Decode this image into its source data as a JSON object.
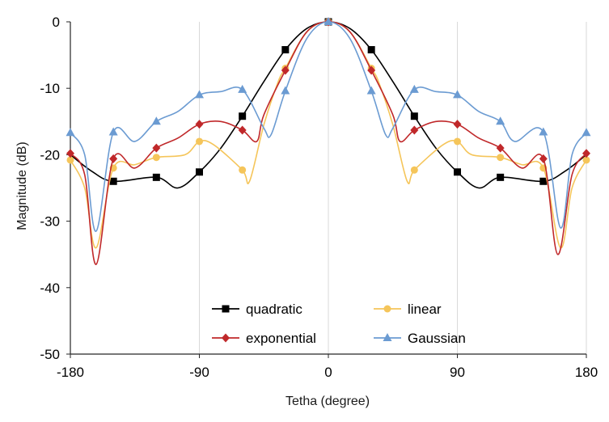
{
  "chart_data": {
    "type": "line",
    "xlabel": "Tetha (degree)",
    "ylabel": "Magnitude (dB)",
    "xlim": [
      -180,
      180
    ],
    "ylim": [
      -50,
      0
    ],
    "xticks": [
      -180,
      -90,
      0,
      90,
      180
    ],
    "yticks": [
      0,
      -10,
      -20,
      -30,
      -40,
      -50
    ],
    "xtick_labels": [
      "-180",
      "-90",
      "0",
      "90",
      "180"
    ],
    "ytick_labels": [
      "0",
      "-10",
      "-20",
      "-30",
      "-40",
      "-50"
    ],
    "grid": "vertical",
    "legend_position": "bottom-center",
    "series": [
      {
        "name": "quadratic",
        "color": "#000000",
        "marker": "square",
        "x": [
          -180,
          -165,
          -150,
          -120,
          -105,
          -90,
          -75,
          -60,
          -45,
          -30,
          -15,
          0,
          15,
          30,
          45,
          60,
          75,
          90,
          105,
          120,
          150,
          165,
          180
        ],
        "y": [
          -20.0,
          -22.5,
          -24.0,
          -23.4,
          -25.0,
          -22.6,
          -19.0,
          -14.2,
          -9.0,
          -4.2,
          -1.0,
          0,
          -1.0,
          -4.2,
          -9.0,
          -14.2,
          -19.0,
          -22.6,
          -25.0,
          -23.4,
          -24.0,
          -22.5,
          -20.0
        ],
        "marker_x": [
          -150,
          -120,
          -90,
          -60,
          -30,
          0,
          30,
          60,
          90,
          120,
          150
        ],
        "marker_y": [
          -24.0,
          -23.4,
          -22.6,
          -14.2,
          -4.2,
          0,
          -4.2,
          -14.2,
          -22.6,
          -23.4,
          -24.0
        ]
      },
      {
        "name": "linear",
        "color": "#f5c55a",
        "marker": "circle",
        "x": [
          -180,
          -170,
          -162,
          -150,
          -135,
          -120,
          -100,
          -90,
          -80,
          -60,
          -55,
          -45,
          -35,
          -30,
          -15,
          0,
          15,
          30,
          35,
          45,
          55,
          60,
          80,
          90,
          100,
          120,
          135,
          150,
          162,
          170,
          180
        ],
        "y": [
          -20.8,
          -25.0,
          -34.0,
          -22.0,
          -21.5,
          -20.4,
          -20.0,
          -18.0,
          -18.5,
          -22.3,
          -24.0,
          -15.5,
          -9.0,
          -7.0,
          -1.5,
          0,
          -1.5,
          -7.0,
          -9.0,
          -15.5,
          -24.0,
          -22.3,
          -18.5,
          -18.0,
          -20.0,
          -20.4,
          -21.5,
          -22.0,
          -34.0,
          -25.0,
          -20.8
        ],
        "marker_x": [
          -180,
          -150,
          -120,
          -90,
          -60,
          -30,
          0,
          30,
          60,
          90,
          120,
          150,
          180
        ],
        "marker_y": [
          -20.8,
          -22.0,
          -20.4,
          -18.0,
          -22.3,
          -7.0,
          0,
          -7.0,
          -22.3,
          -18.0,
          -20.4,
          -22.0,
          -20.8
        ]
      },
      {
        "name": "exponential",
        "color": "#c0282a",
        "marker": "diamond",
        "x": [
          -180,
          -170,
          -162,
          -150,
          -135,
          -120,
          -105,
          -90,
          -75,
          -60,
          -50,
          -45,
          -30,
          -15,
          0,
          15,
          30,
          45,
          50,
          60,
          75,
          90,
          105,
          120,
          135,
          150,
          160,
          170,
          180
        ],
        "y": [
          -19.8,
          -23.0,
          -36.5,
          -20.6,
          -22.0,
          -19.0,
          -17.5,
          -15.4,
          -15.0,
          -16.3,
          -18.0,
          -14.0,
          -7.3,
          -1.5,
          0,
          -1.5,
          -7.3,
          -14.0,
          -18.0,
          -16.3,
          -15.0,
          -15.4,
          -17.5,
          -19.0,
          -22.0,
          -20.6,
          -35.0,
          -23.0,
          -19.8
        ],
        "marker_x": [
          -180,
          -150,
          -120,
          -90,
          -60,
          -30,
          0,
          30,
          60,
          90,
          120,
          150,
          180
        ],
        "marker_y": [
          -19.8,
          -20.6,
          -19.0,
          -15.4,
          -16.3,
          -7.3,
          0,
          -7.3,
          -16.3,
          -15.4,
          -19.0,
          -20.6,
          -19.8
        ]
      },
      {
        "name": "Gaussian",
        "color": "#6b9bd2",
        "marker": "triangle",
        "x": [
          -180,
          -170,
          -162,
          -150,
          -135,
          -120,
          -105,
          -90,
          -75,
          -60,
          -45,
          -40,
          -30,
          -15,
          0,
          15,
          30,
          40,
          45,
          60,
          75,
          90,
          105,
          120,
          130,
          150,
          162,
          170,
          180
        ],
        "y": [
          -16.7,
          -20.0,
          -31.5,
          -16.6,
          -18.0,
          -15.0,
          -13.5,
          -11.0,
          -10.5,
          -10.2,
          -16.0,
          -17.0,
          -10.4,
          -2.5,
          0,
          -2.5,
          -10.4,
          -17.0,
          -16.0,
          -10.2,
          -10.5,
          -11.0,
          -13.5,
          -15.0,
          -18.0,
          -16.6,
          -31.0,
          -20.0,
          -16.7
        ],
        "marker_x": [
          -180,
          -150,
          -120,
          -90,
          -60,
          -30,
          0,
          30,
          60,
          90,
          120,
          150,
          180
        ],
        "marker_y": [
          -16.7,
          -16.6,
          -15.0,
          -11.0,
          -10.2,
          -10.4,
          0,
          -10.4,
          -10.2,
          -11.0,
          -15.0,
          -16.6,
          -16.7
        ]
      }
    ]
  }
}
